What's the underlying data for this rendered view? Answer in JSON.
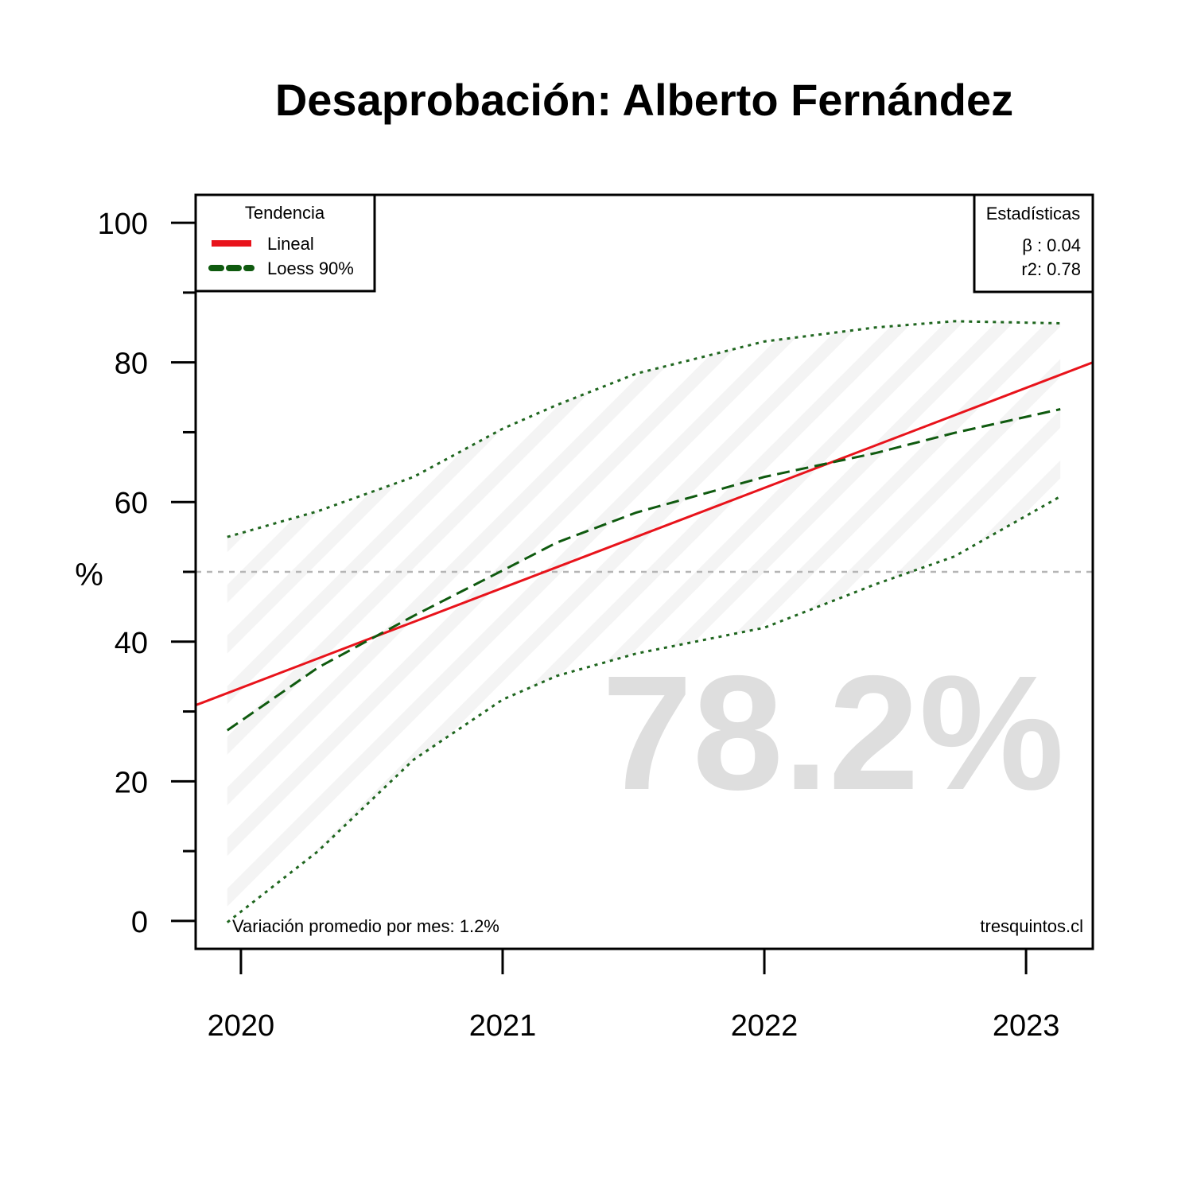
{
  "chart_data": {
    "type": "line",
    "title": "Desaprobación: Alberto Fernández",
    "y_label": "%",
    "xlim": [
      2019.827,
      2023.255
    ],
    "xticks": [
      2020,
      2021,
      2022,
      2023
    ],
    "ylim": [
      -4,
      104
    ],
    "yticks": [
      0,
      20,
      40,
      60,
      80,
      100
    ],
    "yminor_ticks": [
      10,
      30,
      50,
      70,
      90
    ],
    "reference_line": 50,
    "legend_title": "Tendencia",
    "series": [
      {
        "name": "Lineal",
        "color": "#e8131b",
        "style": "solid",
        "x": [
          2019.827,
          2023.255
        ],
        "values": [
          30.9,
          80.0
        ]
      },
      {
        "name": "Loess 90%",
        "color": "#0f5a0f",
        "style": "dashed",
        "x": [
          2019.948,
          2020.295,
          2020.66,
          2021.0,
          2021.207,
          2021.511,
          2022.0,
          2022.423,
          2022.726,
          2023.131
        ],
        "values": [
          27.3,
          36.3,
          43.7,
          50.2,
          54.2,
          58.5,
          63.6,
          67.0,
          69.9,
          73.3
        ]
      }
    ],
    "band": {
      "color": "#1f661f",
      "x": [
        2019.948,
        2020.295,
        2020.66,
        2021.0,
        2021.207,
        2021.511,
        2022.0,
        2022.423,
        2022.726,
        2023.131
      ],
      "upper": [
        55.0,
        58.7,
        63.6,
        70.5,
        73.9,
        78.4,
        83.0,
        85.0,
        85.9,
        85.6
      ],
      "lower": [
        -0.2,
        10.0,
        23.1,
        31.7,
        35.1,
        38.3,
        42.0,
        48.2,
        52.2,
        60.8
      ]
    },
    "stats": {
      "title": "Estadísticas",
      "lines": [
        "β : 0.04",
        "r2: 0.78"
      ]
    },
    "watermark": "78.2%",
    "annotations": [
      "Variación promedio por mes: 1.2%",
      "tresquintos.cl"
    ]
  }
}
